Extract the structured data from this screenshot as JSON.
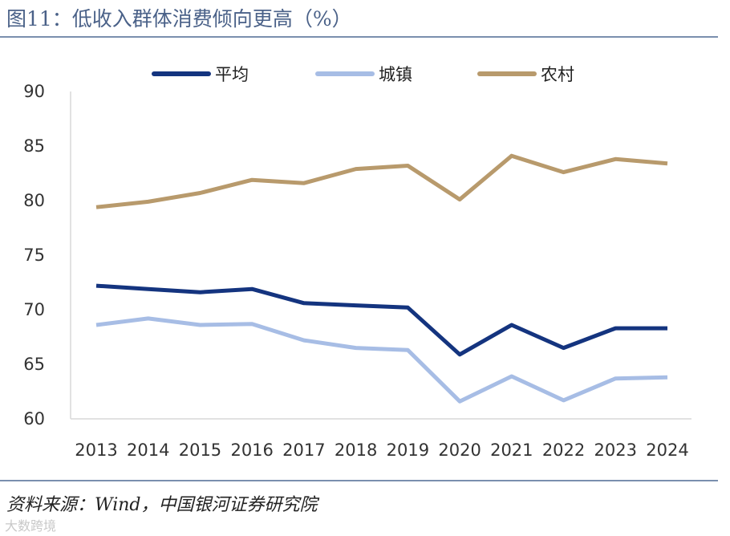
{
  "header": {
    "title": "图11：低收入群体消费倾向更高（%）"
  },
  "footer": {
    "source": "资料来源：Wind，中国银河证券研究院",
    "watermark": "大数跨境"
  },
  "chart_data": {
    "type": "line",
    "title": "低收入群体消费倾向更高（%）",
    "xlabel": "",
    "ylabel": "",
    "ylim": [
      60,
      90
    ],
    "yticks": [
      60,
      65,
      70,
      75,
      80,
      85,
      90
    ],
    "grid": false,
    "legend_position": "top-center",
    "categories": [
      "2013",
      "2014",
      "2015",
      "2016",
      "2017",
      "2018",
      "2019",
      "2020",
      "2021",
      "2022",
      "2023",
      "2024"
    ],
    "series": [
      {
        "name": "平均",
        "color": "#14347f",
        "values": [
          72.2,
          71.9,
          71.6,
          71.9,
          70.6,
          70.4,
          70.2,
          65.9,
          68.6,
          66.5,
          68.3,
          68.3
        ]
      },
      {
        "name": "城镇",
        "color": "#a7bde5",
        "values": [
          68.6,
          69.2,
          68.6,
          68.7,
          67.2,
          66.5,
          66.3,
          61.6,
          63.9,
          61.7,
          63.7,
          63.8
        ]
      },
      {
        "name": "农村",
        "color": "#b89a6c",
        "values": [
          79.4,
          79.9,
          80.7,
          81.9,
          81.6,
          82.9,
          83.2,
          80.1,
          84.1,
          82.6,
          83.8,
          83.4
        ]
      }
    ]
  }
}
